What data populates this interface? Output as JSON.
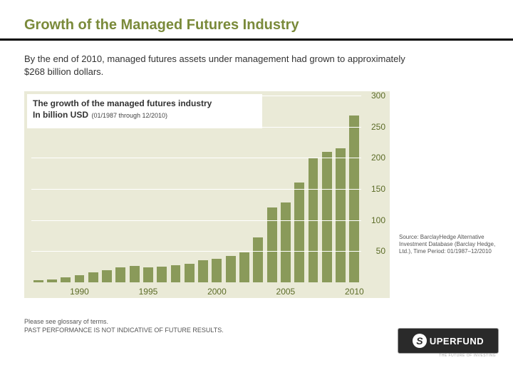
{
  "title": "Growth of the Managed Futures Industry",
  "title_color": "#7a8a3a",
  "title_fontsize": 20,
  "lead": "By the end of 2010, managed futures assets under management had grown to approximately $268 billion dollars.",
  "lead_fontsize": 13,
  "chart": {
    "type": "bar",
    "panel_background": "#eaead7",
    "bar_color": "#8a9a5a",
    "grid_color": "#ffffff",
    "axis_label_color": "#5b6b27",
    "caption_line1": "The growth of the managed futures industry",
    "caption_line2": "In billion USD",
    "caption_sub": "(01/1987 through 12/2010)",
    "caption_fontsize": 12,
    "ylim": [
      0,
      300
    ],
    "yticks": [
      50,
      100,
      150,
      200,
      250,
      300
    ],
    "ytick_fontsize": 12,
    "xtick_labels": [
      "1990",
      "1995",
      "2000",
      "2005",
      "2010"
    ],
    "xtick_years": [
      1990,
      1995,
      2000,
      2005,
      2010
    ],
    "xtick_fontsize": 12,
    "bar_width_ratio": 0.72,
    "years": [
      1987,
      1988,
      1989,
      1990,
      1991,
      1992,
      1993,
      1994,
      1995,
      1996,
      1997,
      1998,
      1999,
      2000,
      2001,
      2002,
      2003,
      2004,
      2005,
      2006,
      2007,
      2008,
      2009,
      2010
    ],
    "values": [
      3,
      5,
      8,
      12,
      16,
      20,
      24,
      26,
      24,
      25,
      28,
      30,
      35,
      38,
      42,
      48,
      72,
      120,
      128,
      160,
      200,
      210,
      215,
      268
    ]
  },
  "source": "Source: BarclayHedge Alternative Investment Database (Barclay Hedge, Ltd.), Time Period: 01/1987–12/2010",
  "source_fontsize": 8,
  "disclaimer_line1": "Please see glossary of terms.",
  "disclaimer_line2": "PAST PERFORMANCE IS NOT INDICATIVE OF FUTURE RESULTS.",
  "disclaimer_fontsize": 9,
  "logo": {
    "mark": "S",
    "text": "UPERFUND",
    "tag": "THE FUTURE OF INVESTING"
  }
}
